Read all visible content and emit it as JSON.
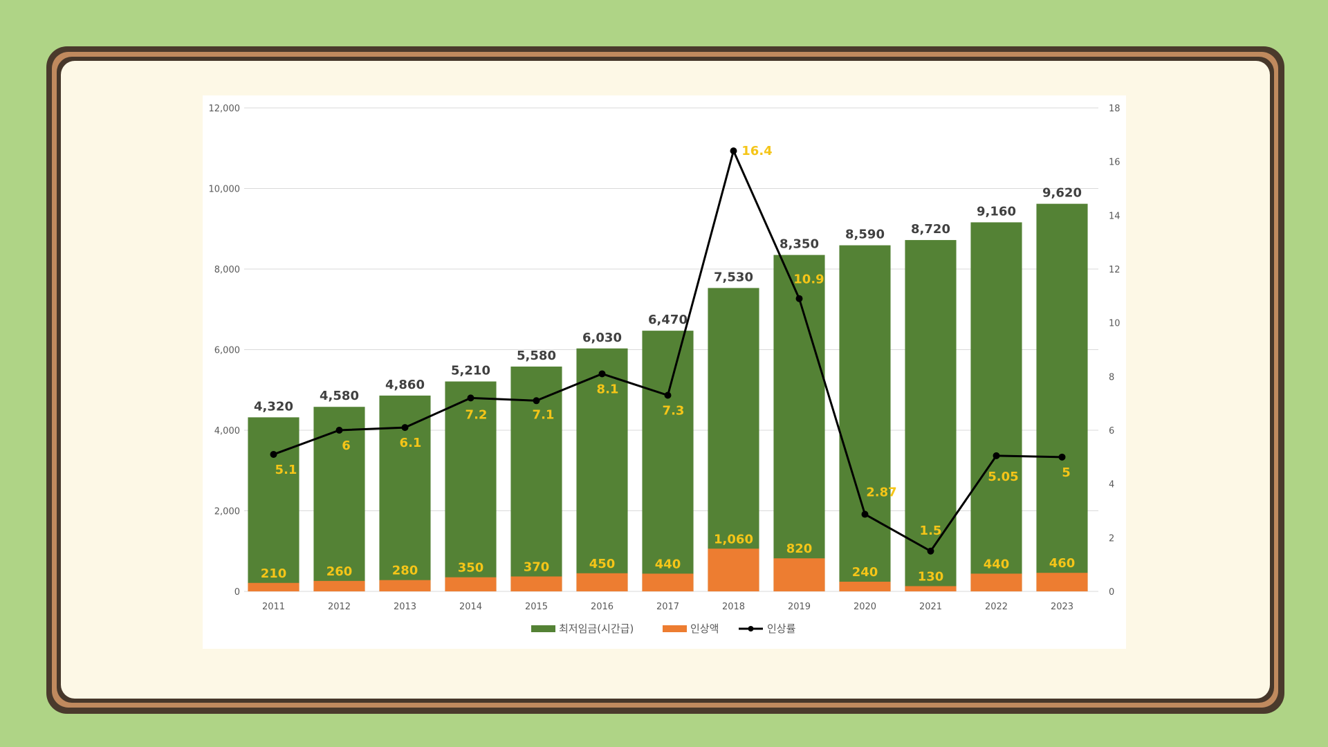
{
  "chart_data": {
    "type": "bar",
    "categories": [
      "2011",
      "2012",
      "2013",
      "2014",
      "2015",
      "2016",
      "2017",
      "2018",
      "2019",
      "2020",
      "2021",
      "2022",
      "2023"
    ],
    "series": [
      {
        "name": "최저임금(시간급)",
        "kind": "bar",
        "axis": "left",
        "color": "#548235",
        "values": [
          4320,
          4580,
          4860,
          5210,
          5580,
          6030,
          6470,
          7530,
          8350,
          8590,
          8720,
          9160,
          9620
        ]
      },
      {
        "name": "인상액",
        "kind": "bar",
        "axis": "left",
        "color": "#ed7d31",
        "values": [
          210,
          260,
          280,
          350,
          370,
          450,
          440,
          1060,
          820,
          240,
          130,
          440,
          460
        ]
      },
      {
        "name": "인상률",
        "kind": "line",
        "axis": "right",
        "color": "#000000",
        "values": [
          5.1,
          6,
          6.1,
          7.2,
          7.1,
          8.1,
          7.3,
          16.4,
          10.9,
          2.87,
          1.5,
          5.05,
          5
        ]
      }
    ],
    "total_labels": [
      "4,320",
      "4,580",
      "4,860",
      "5,210",
      "5,580",
      "6,030",
      "6,470",
      "7,530",
      "8,350",
      "8,590",
      "8,720",
      "9,160",
      "9,620"
    ],
    "increase_labels": [
      "210",
      "260",
      "280",
      "350",
      "370",
      "450",
      "440",
      "1,060",
      "820",
      "240",
      "130",
      "440",
      "460"
    ],
    "rate_labels": [
      "5.1",
      "6",
      "6.1",
      "7.2",
      "7.1",
      "8.1",
      "7.3",
      "16.4",
      "10.9",
      "2.87",
      "1.5",
      "5.05",
      "5"
    ],
    "ylim": [
      0,
      12000
    ],
    "y2lim": [
      0,
      18
    ],
    "y_ticks": [
      "0",
      "2,000",
      "4,000",
      "6,000",
      "8,000",
      "10,000",
      "12,000"
    ],
    "y2_ticks": [
      "0",
      "2",
      "4",
      "6",
      "8",
      "10",
      "12",
      "14",
      "16",
      "18"
    ],
    "grid": true,
    "legend_position": "bottom",
    "label_color": "#f5c518"
  },
  "legend": {
    "wage": "최저임금(시간급)",
    "increase": "인상액",
    "rate": "인상률"
  }
}
